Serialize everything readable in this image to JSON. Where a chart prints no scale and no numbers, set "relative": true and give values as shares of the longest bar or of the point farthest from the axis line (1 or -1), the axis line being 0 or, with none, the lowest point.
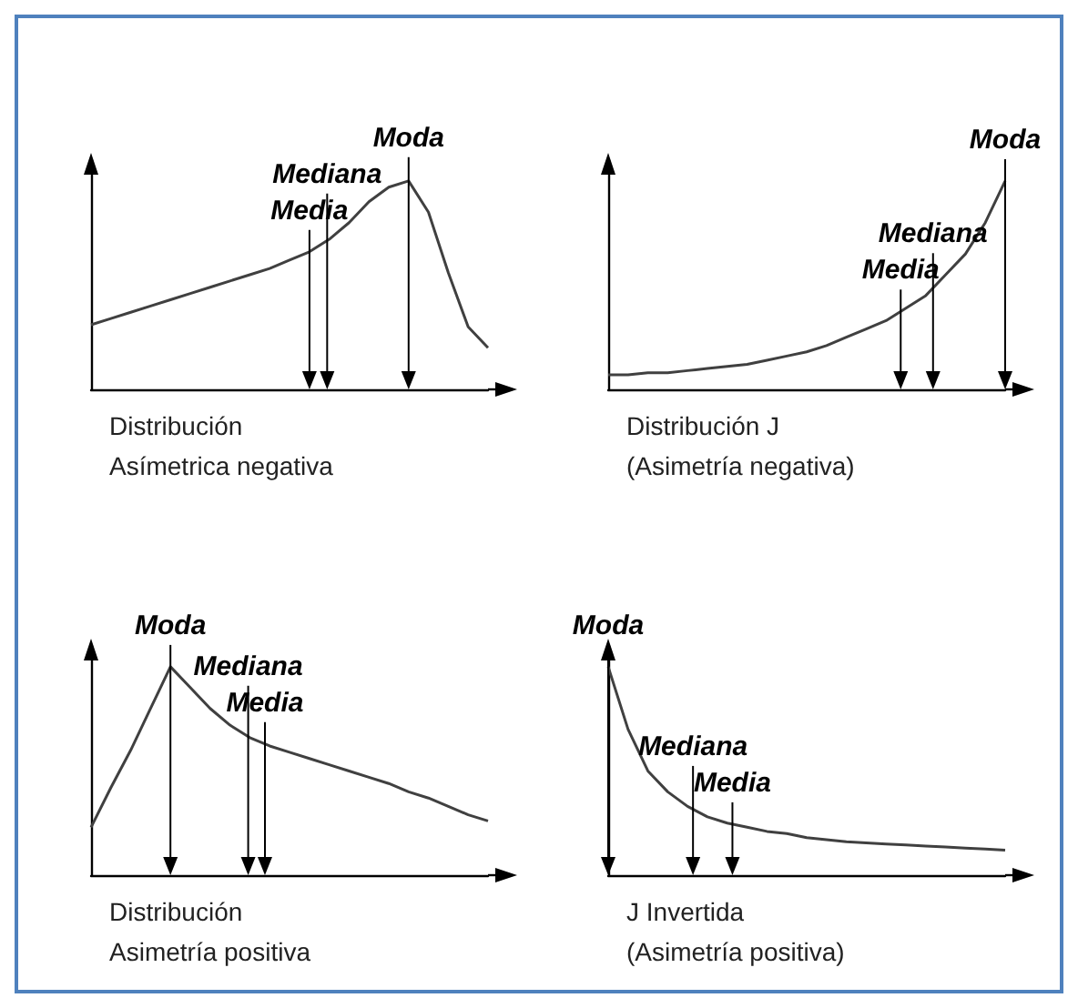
{
  "chart_data": [
    {
      "type": "line",
      "relative": true,
      "color": "#404040",
      "marker": "none",
      "grid": false,
      "xlabel": "Distribución\nAsímetrica negativa",
      "categories": [
        null,
        null,
        null,
        null,
        null,
        null,
        null,
        null,
        null,
        null,
        null,
        null,
        null,
        null,
        null,
        null,
        null,
        null,
        null,
        null,
        null
      ],
      "values": [
        0.31,
        0.34,
        0.37,
        0.4,
        0.43,
        0.46,
        0.49,
        0.52,
        0.55,
        0.58,
        0.62,
        0.66,
        0.72,
        0.8,
        0.9,
        0.97,
        1,
        0.85,
        0.56,
        0.3,
        0.2
      ],
      "annotations": [
        "Media",
        "Mediana",
        "Moda"
      ]
    },
    {
      "type": "line",
      "relative": true,
      "color": "#404040",
      "marker": "none",
      "grid": false,
      "xlabel": "Distribución J\n(Asimetría negativa)",
      "categories": [
        null,
        null,
        null,
        null,
        null,
        null,
        null,
        null,
        null,
        null,
        null,
        null,
        null,
        null,
        null,
        null,
        null,
        null,
        null,
        null,
        null
      ],
      "values": [
        0.07,
        0.07,
        0.08,
        0.08,
        0.09,
        0.1,
        0.11,
        0.12,
        0.14,
        0.16,
        0.18,
        0.21,
        0.25,
        0.29,
        0.33,
        0.39,
        0.45,
        0.55,
        0.65,
        0.8,
        1
      ],
      "annotations": [
        "Media",
        "Mediana",
        "Moda"
      ]
    },
    {
      "type": "line",
      "relative": true,
      "color": "#404040",
      "marker": "none",
      "grid": false,
      "xlabel": "Distribución\nAsimetría positiva",
      "categories": [
        null,
        null,
        null,
        null,
        null,
        null,
        null,
        null,
        null,
        null,
        null,
        null,
        null,
        null,
        null,
        null,
        null,
        null,
        null,
        null,
        null
      ],
      "values": [
        0.23,
        0.42,
        0.6,
        0.8,
        1,
        0.9,
        0.8,
        0.72,
        0.66,
        0.62,
        0.59,
        0.56,
        0.53,
        0.5,
        0.47,
        0.44,
        0.4,
        0.37,
        0.33,
        0.29,
        0.26
      ],
      "annotations": [
        "Media",
        "Mediana",
        "Moda"
      ]
    },
    {
      "type": "line",
      "relative": true,
      "color": "#404040",
      "marker": "none",
      "grid": false,
      "xlabel": "J Invertida\n(Asimetría positiva)",
      "categories": [
        null,
        null,
        null,
        null,
        null,
        null,
        null,
        null,
        null,
        null,
        null,
        null,
        null,
        null,
        null,
        null,
        null,
        null,
        null,
        null,
        null
      ],
      "values": [
        1,
        0.7,
        0.5,
        0.4,
        0.33,
        0.28,
        0.25,
        0.23,
        0.21,
        0.2,
        0.18,
        0.17,
        0.16,
        0.155,
        0.15,
        0.145,
        0.14,
        0.135,
        0.13,
        0.125,
        0.12
      ],
      "annotations": [
        "Media",
        "Mediana",
        "Moda"
      ]
    }
  ]
}
